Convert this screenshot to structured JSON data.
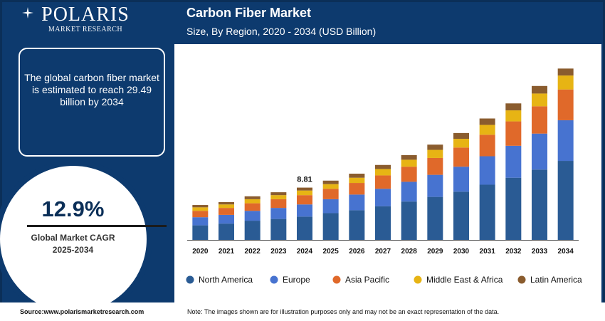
{
  "brand": {
    "name": "POLARIS",
    "tagline": "MARKET RESEARCH"
  },
  "info_box": {
    "text": "The global carbon fiber market is estimated to reach 29.49 billion by 2034"
  },
  "cagr": {
    "value": "12.9%",
    "label_line1": "Global Market CAGR",
    "label_line2": "2025-2034"
  },
  "footer": {
    "source": "Source:www.polarismarketresearch.com",
    "note": "Note: The images shown are for illustration purposes only and may not be an exact representation of the data."
  },
  "colors": {
    "frame": "#0d3a6e",
    "north_america": "#2a5b94",
    "europe": "#4773d0",
    "asia_pacific": "#e0692a",
    "middle_east_africa": "#e7b414",
    "latin_america": "#8a5c2e"
  },
  "chart_data": {
    "type": "bar",
    "stacked": true,
    "title": "Carbon Fiber Market",
    "subtitle": "Size, By Region, 2020 - 2034 (USD Billion)",
    "categories": [
      "2020",
      "2021",
      "2022",
      "2023",
      "2024",
      "2025",
      "2026",
      "2027",
      "2028",
      "2029",
      "2030",
      "2031",
      "2032",
      "2033",
      "2034"
    ],
    "series": [
      {
        "name": "North America",
        "color": "#2a5b94",
        "values": [
          2.5,
          2.8,
          3.3,
          3.6,
          4.0,
          4.6,
          5.1,
          5.8,
          6.6,
          7.4,
          8.3,
          9.5,
          10.7,
          12.1,
          13.6
        ]
      },
      {
        "name": "Europe",
        "color": "#4773d0",
        "values": [
          1.4,
          1.5,
          1.7,
          1.9,
          2.1,
          2.4,
          2.7,
          3.0,
          3.4,
          3.8,
          4.3,
          4.9,
          5.5,
          6.2,
          7.0
        ]
      },
      {
        "name": "Asia Pacific",
        "color": "#e0692a",
        "values": [
          1.1,
          1.2,
          1.3,
          1.5,
          1.6,
          1.8,
          2.0,
          2.3,
          2.6,
          2.9,
          3.3,
          3.7,
          4.2,
          4.7,
          5.3
        ]
      },
      {
        "name": "Middle East & Africa",
        "color": "#e7b414",
        "values": [
          0.6,
          0.6,
          0.7,
          0.7,
          0.8,
          0.8,
          0.9,
          1.1,
          1.2,
          1.4,
          1.5,
          1.7,
          1.9,
          2.2,
          2.4
        ]
      },
      {
        "name": "Latin America",
        "color": "#8a5c2e",
        "values": [
          0.4,
          0.4,
          0.5,
          0.5,
          0.5,
          0.6,
          0.7,
          0.7,
          0.8,
          0.9,
          1.0,
          1.1,
          1.2,
          1.3,
          1.2
        ]
      }
    ],
    "annotations": [
      {
        "category": "2024",
        "label": "8.81"
      }
    ],
    "legend_position": "bottom",
    "grid": false,
    "ylim": [
      0,
      31.5
    ]
  }
}
